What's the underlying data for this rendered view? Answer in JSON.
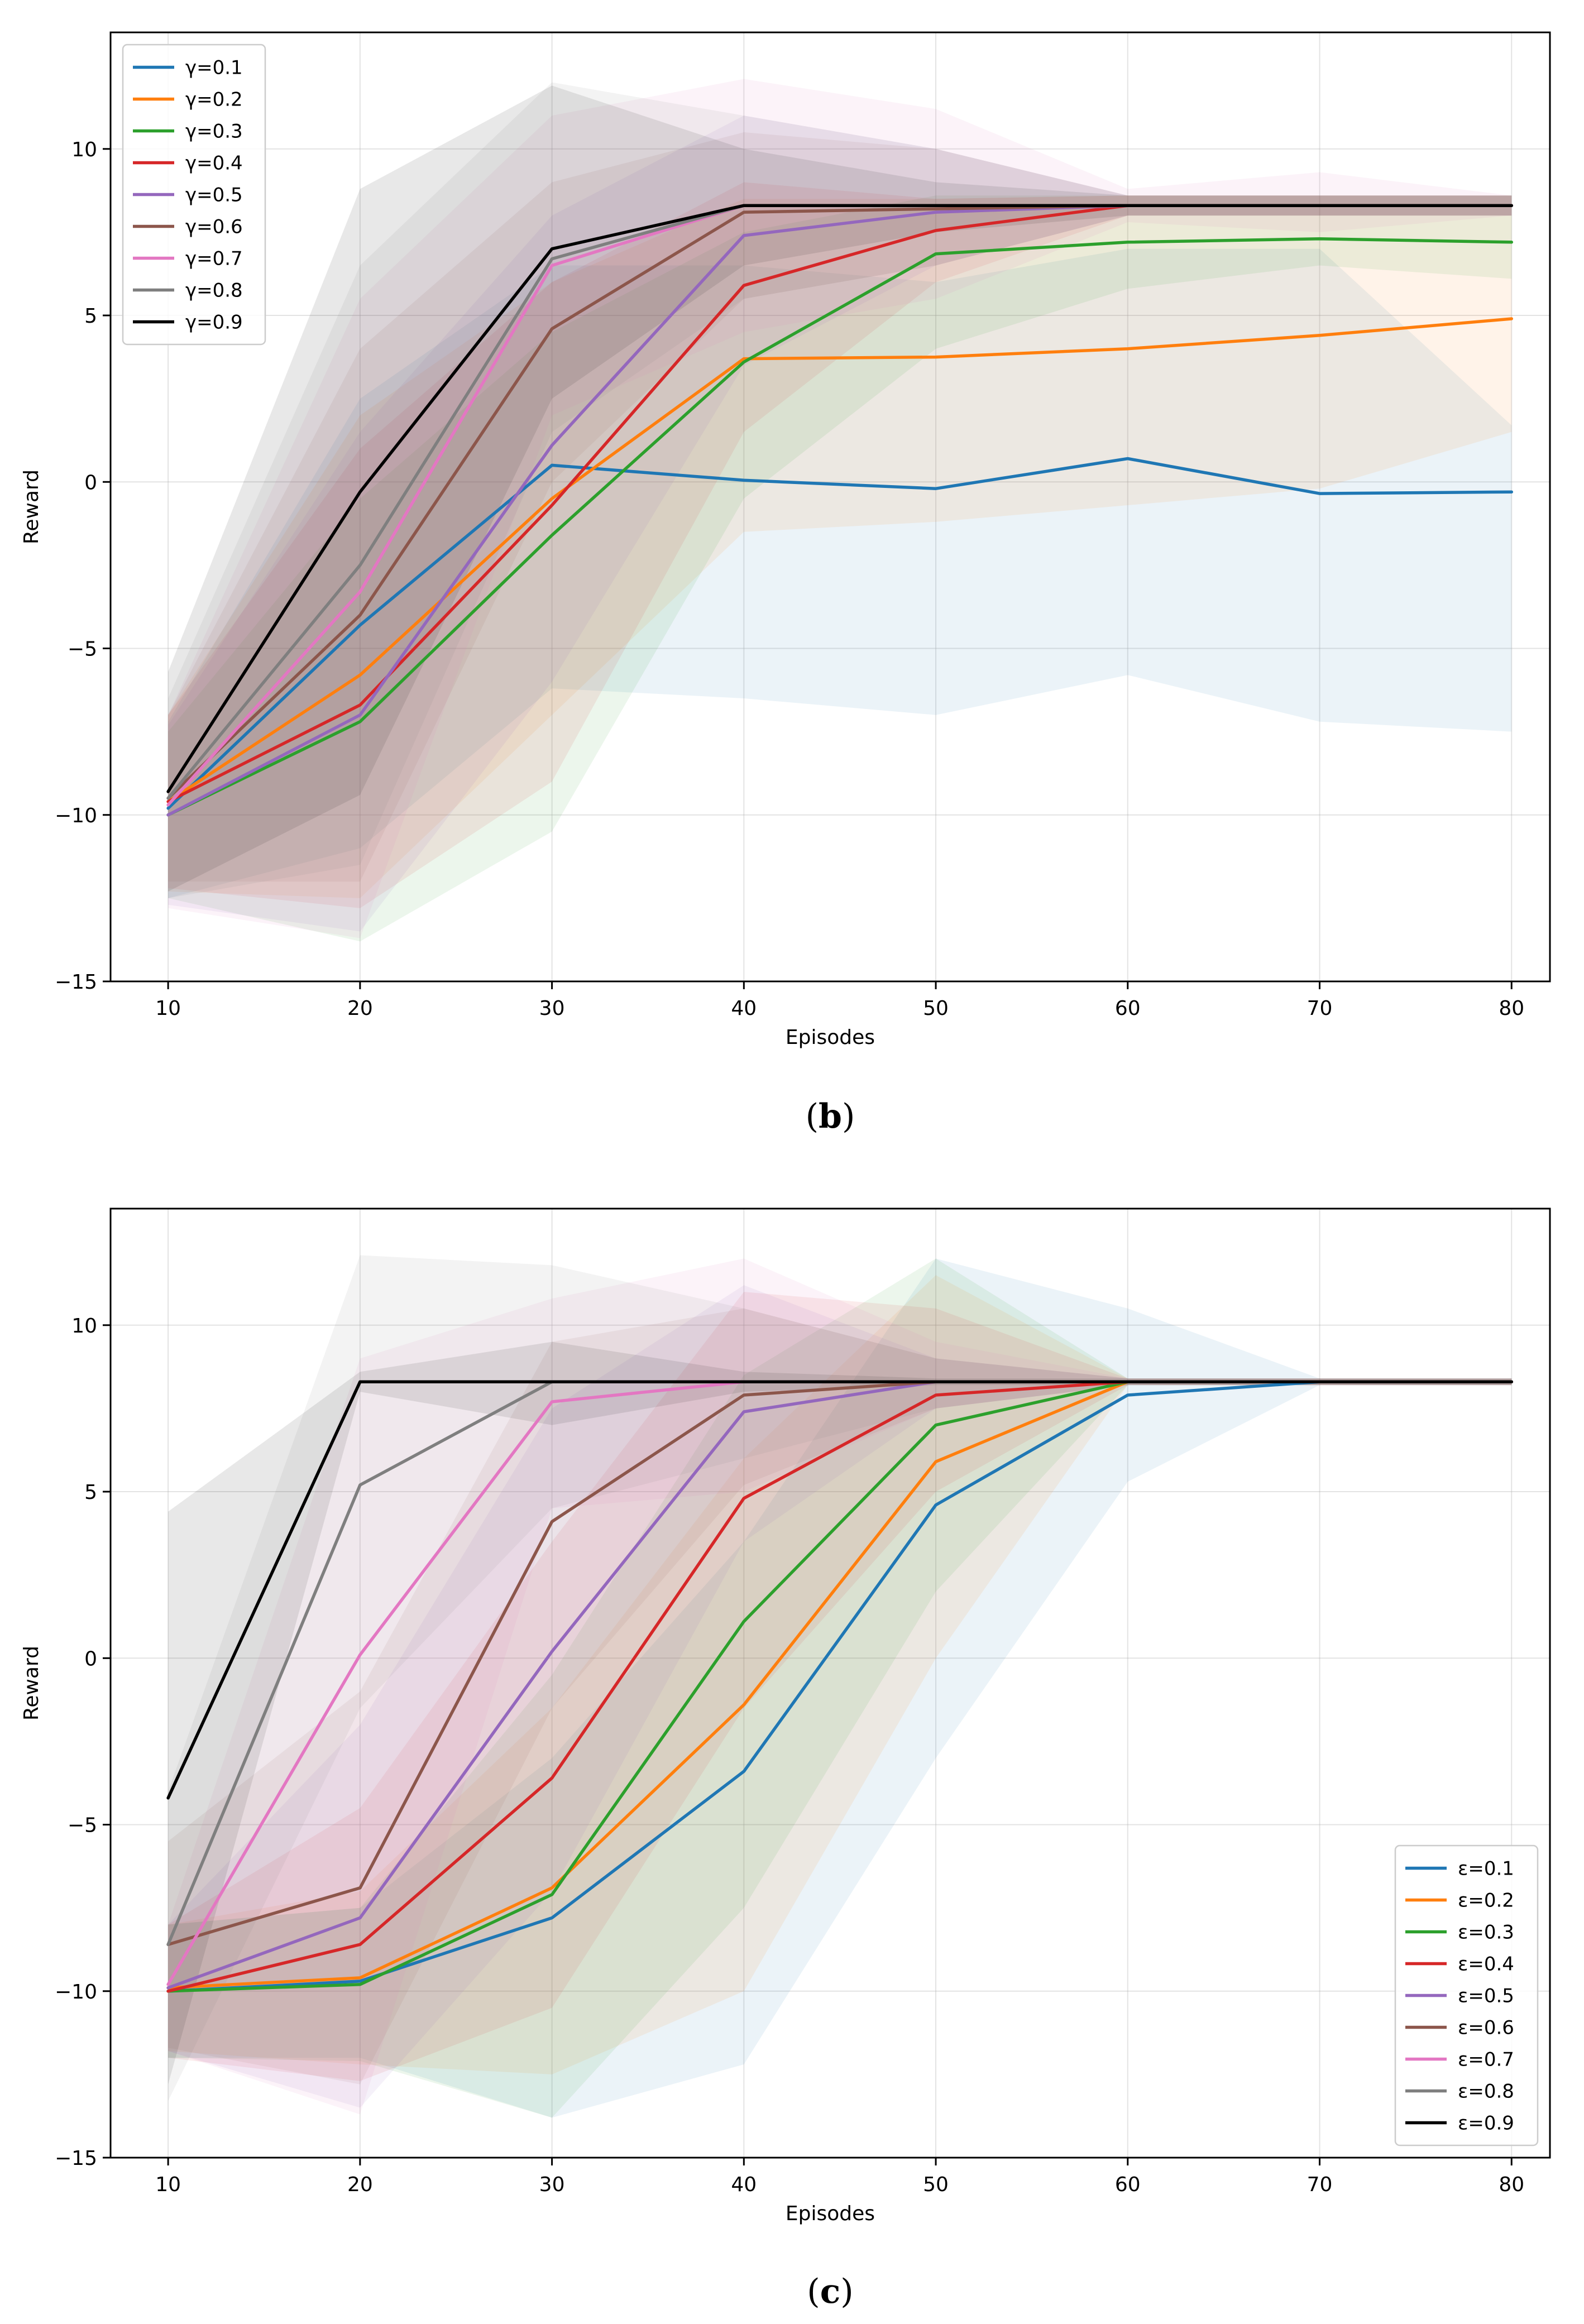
{
  "chart_data": [
    {
      "type": "line",
      "panel": "b",
      "caption_letter": "b",
      "xlabel": "Episodes",
      "ylabel": "Reward",
      "xlim": [
        7,
        82
      ],
      "ylim": [
        -15,
        13.5
      ],
      "xticks": [
        10,
        20,
        30,
        40,
        50,
        60,
        70,
        80
      ],
      "yticks": [
        -15,
        -10,
        -5,
        0,
        5,
        10
      ],
      "grid": true,
      "legend_position": "upper-left",
      "x": [
        10,
        20,
        30,
        40,
        50,
        60,
        70,
        80
      ],
      "series": [
        {
          "name": "γ=0.1",
          "color": "#1f77b4",
          "values": [
            -9.8,
            -4.3,
            0.5,
            0.05,
            -0.2,
            0.7,
            -0.35,
            -0.3
          ],
          "upper": [
            -7.2,
            2.5,
            6.5,
            6.5,
            6.0,
            7.0,
            7.0,
            1.7
          ],
          "lower": [
            -12.5,
            -11.0,
            -6.2,
            -6.5,
            -7.0,
            -5.8,
            -7.2,
            -7.5
          ]
        },
        {
          "name": "γ=0.2",
          "color": "#ff7f0e",
          "values": [
            -9.6,
            -5.8,
            -0.5,
            3.7,
            3.75,
            4.0,
            4.4,
            4.9
          ],
          "upper": [
            -7.0,
            2.0,
            6.0,
            8.5,
            8.5,
            8.6,
            8.6,
            8.6
          ],
          "lower": [
            -12.3,
            -12.5,
            -7.0,
            -1.5,
            -1.2,
            -0.7,
            -0.2,
            1.5
          ]
        },
        {
          "name": "γ=0.3",
          "color": "#2ca02c",
          "values": [
            -10.0,
            -7.2,
            -1.6,
            3.6,
            6.85,
            7.2,
            7.3,
            7.2
          ],
          "upper": [
            -7.5,
            -0.5,
            4.5,
            7.5,
            8.6,
            8.6,
            8.6,
            8.6
          ],
          "lower": [
            -12.5,
            -13.8,
            -10.5,
            -0.5,
            4.0,
            5.8,
            6.5,
            6.1
          ]
        },
        {
          "name": "γ=0.4",
          "color": "#d62728",
          "values": [
            -9.6,
            -6.7,
            -0.7,
            5.9,
            7.55,
            8.3,
            8.3,
            8.3
          ],
          "upper": [
            -7.0,
            1.0,
            6.0,
            9.0,
            8.5,
            8.6,
            8.6,
            8.6
          ],
          "lower": [
            -12.2,
            -12.8,
            -9.0,
            1.5,
            6.0,
            8.0,
            8.0,
            8.0
          ]
        },
        {
          "name": "γ=0.5",
          "color": "#9467bd",
          "values": [
            -10.0,
            -7.0,
            1.1,
            7.4,
            8.1,
            8.3,
            8.3,
            8.3
          ],
          "upper": [
            -7.3,
            1.5,
            8.0,
            11.0,
            10.0,
            8.6,
            8.6,
            8.6
          ],
          "lower": [
            -12.7,
            -13.5,
            -6.0,
            3.5,
            6.5,
            8.0,
            8.0,
            8.0
          ]
        },
        {
          "name": "γ=0.6",
          "color": "#8c564b",
          "values": [
            -9.5,
            -4.0,
            4.6,
            8.1,
            8.2,
            8.3,
            8.3,
            8.3
          ],
          "upper": [
            -7.0,
            4.0,
            9.0,
            10.5,
            10.0,
            8.6,
            8.6,
            8.6
          ],
          "lower": [
            -12.0,
            -12.0,
            0.0,
            5.5,
            6.5,
            8.0,
            8.0,
            8.0
          ]
        },
        {
          "name": "γ=0.7",
          "color": "#e377c2",
          "values": [
            -9.7,
            -3.3,
            6.5,
            8.3,
            8.3,
            8.3,
            8.3,
            8.3
          ],
          "upper": [
            -7.0,
            5.5,
            11.0,
            12.1,
            11.2,
            8.8,
            9.3,
            8.6
          ],
          "lower": [
            -12.8,
            -13.7,
            2.0,
            4.5,
            5.5,
            7.8,
            7.5,
            8.0
          ]
        },
        {
          "name": "γ=0.8",
          "color": "#7f7f7f",
          "values": [
            -9.5,
            -2.5,
            6.7,
            8.3,
            8.3,
            8.3,
            8.3,
            8.3
          ],
          "upper": [
            -6.5,
            6.5,
            12.0,
            11.0,
            10.0,
            8.6,
            8.6,
            8.6
          ],
          "lower": [
            -12.5,
            -11.5,
            1.5,
            5.5,
            6.5,
            8.0,
            8.0,
            8.0
          ]
        },
        {
          "name": "γ=0.9",
          "color": "#000000",
          "values": [
            -9.3,
            -0.3,
            7.0,
            8.3,
            8.3,
            8.3,
            8.3,
            8.3
          ],
          "upper": [
            -5.7,
            8.8,
            11.9,
            10.0,
            9.0,
            8.6,
            8.6,
            8.6
          ],
          "lower": [
            -12.3,
            -9.4,
            2.5,
            6.5,
            7.5,
            8.0,
            8.0,
            8.0
          ]
        }
      ]
    },
    {
      "type": "line",
      "panel": "c",
      "caption_letter": "c",
      "xlabel": "Episodes",
      "ylabel": "Reward",
      "xlim": [
        7,
        82
      ],
      "ylim": [
        -15,
        13.5
      ],
      "xticks": [
        10,
        20,
        30,
        40,
        50,
        60,
        70,
        80
      ],
      "yticks": [
        -15,
        -10,
        -5,
        0,
        5,
        10
      ],
      "grid": true,
      "legend_position": "lower-right",
      "x": [
        10,
        20,
        30,
        40,
        50,
        60,
        70,
        80
      ],
      "series": [
        {
          "name": "ε=0.1",
          "color": "#1f77b4",
          "values": [
            -10.0,
            -9.7,
            -7.8,
            -3.4,
            4.6,
            7.9,
            8.3,
            8.3
          ],
          "upper": [
            -8.0,
            -7.5,
            -3.0,
            3.5,
            12.0,
            10.5,
            8.4,
            8.4
          ],
          "lower": [
            -12.0,
            -12.0,
            -13.8,
            -12.2,
            -3.0,
            5.3,
            8.2,
            8.2
          ]
        },
        {
          "name": "ε=0.2",
          "color": "#ff7f0e",
          "values": [
            -9.9,
            -9.6,
            -6.9,
            -1.4,
            5.9,
            8.3,
            8.3,
            8.3
          ],
          "upper": [
            -8.0,
            -7.0,
            -1.5,
            6.0,
            11.5,
            8.4,
            8.4,
            8.4
          ],
          "lower": [
            -11.8,
            -12.2,
            -12.5,
            -10.0,
            0.0,
            8.2,
            8.2,
            8.2
          ]
        },
        {
          "name": "ε=0.3",
          "color": "#2ca02c",
          "values": [
            -10.0,
            -9.8,
            -7.1,
            1.1,
            7.0,
            8.3,
            8.3,
            8.3
          ],
          "upper": [
            -8.0,
            -7.5,
            -0.5,
            8.5,
            12.0,
            8.4,
            8.4,
            8.4
          ],
          "lower": [
            -12.0,
            -12.1,
            -13.8,
            -7.5,
            2.0,
            8.2,
            8.2,
            8.2
          ]
        },
        {
          "name": "ε=0.4",
          "color": "#d62728",
          "values": [
            -10.0,
            -8.6,
            -3.6,
            4.8,
            7.9,
            8.3,
            8.3,
            8.3
          ],
          "upper": [
            -8.0,
            -4.5,
            3.5,
            11.0,
            10.5,
            8.4,
            8.4,
            8.4
          ],
          "lower": [
            -12.0,
            -12.7,
            -10.5,
            -1.5,
            5.0,
            8.2,
            8.2,
            8.2
          ]
        },
        {
          "name": "ε=0.5",
          "color": "#9467bd",
          "values": [
            -9.9,
            -7.8,
            0.2,
            7.4,
            8.3,
            8.3,
            8.3,
            8.3
          ],
          "upper": [
            -8.0,
            -2.0,
            7.5,
            11.2,
            9.0,
            8.4,
            8.4,
            8.4
          ],
          "lower": [
            -11.8,
            -13.5,
            -7.0,
            3.5,
            7.5,
            8.2,
            8.2,
            8.2
          ]
        },
        {
          "name": "ε=0.6",
          "color": "#8c564b",
          "values": [
            -8.6,
            -6.9,
            4.1,
            7.9,
            8.3,
            8.3,
            8.3,
            8.3
          ],
          "upper": [
            -5.5,
            -1.0,
            9.5,
            10.5,
            9.0,
            8.4,
            8.4,
            8.4
          ],
          "lower": [
            -11.7,
            -12.8,
            -1.5,
            5.2,
            7.5,
            8.2,
            8.2,
            8.2
          ]
        },
        {
          "name": "ε=0.7",
          "color": "#e377c2",
          "values": [
            -9.8,
            0.1,
            7.7,
            8.3,
            8.3,
            8.3,
            8.3,
            8.3
          ],
          "upper": [
            -8.0,
            9.0,
            10.8,
            12.0,
            9.5,
            8.4,
            8.4,
            8.4
          ],
          "lower": [
            -11.8,
            -13.7,
            4.5,
            5.0,
            7.5,
            8.2,
            8.2,
            8.2
          ]
        },
        {
          "name": "ε=0.8",
          "color": "#7f7f7f",
          "values": [
            -8.6,
            5.2,
            8.3,
            8.3,
            8.3,
            8.3,
            8.3,
            8.3
          ],
          "upper": [
            -4.0,
            12.1,
            11.8,
            10.5,
            9.0,
            8.4,
            8.4,
            8.4
          ],
          "lower": [
            -13.3,
            -1.5,
            4.5,
            6.0,
            7.5,
            8.2,
            8.2,
            8.2
          ]
        },
        {
          "name": "ε=0.9",
          "color": "#000000",
          "values": [
            -4.2,
            8.3,
            8.3,
            8.3,
            8.3,
            8.3,
            8.3,
            8.3
          ],
          "upper": [
            4.4,
            8.6,
            9.5,
            8.6,
            8.4,
            8.4,
            8.4,
            8.4
          ],
          "lower": [
            -12.8,
            8.0,
            7.0,
            8.0,
            8.2,
            8.2,
            8.2,
            8.2
          ]
        }
      ]
    }
  ]
}
